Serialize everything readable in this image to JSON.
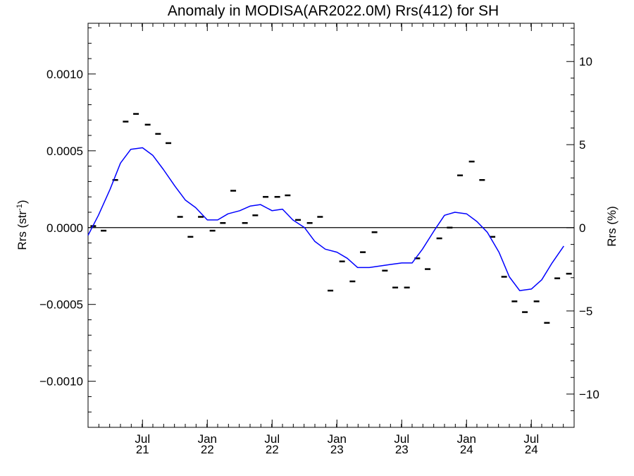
{
  "chart_data": {
    "type": "line",
    "title": "Anomaly in MODISA(AR2022.0M) Rrs(412) for SH",
    "ylabel_left": "Rrs (str",
    "ylabel_left_sup": "-1",
    "ylabel_left_close": ")",
    "ylabel_right": "Rrs (%)",
    "xlabel": "",
    "x_unit": "year (decimal)",
    "xlim": [
      2021.0,
      2024.75
    ],
    "ylim_left": [
      -0.0013,
      0.00133
    ],
    "ylim_right": [
      -12.0,
      12.3
    ],
    "y_ticks_left": [
      {
        "value": 0.001,
        "label": "0.0010"
      },
      {
        "value": 0.0005,
        "label": "0.0005"
      },
      {
        "value": 0.0,
        "label": "0.0000"
      },
      {
        "value": -0.0005,
        "label": "−0.0005"
      },
      {
        "value": -0.001,
        "label": "−0.0010"
      }
    ],
    "y_ticks_right": [
      {
        "value": 10,
        "label": "10"
      },
      {
        "value": 5,
        "label": "5"
      },
      {
        "value": 0,
        "label": "0"
      },
      {
        "value": -5,
        "label": "−5"
      },
      {
        "value": -10,
        "label": "−10"
      }
    ],
    "x_ticks": [
      {
        "value": 2021.42,
        "month": "Jul",
        "year": "21"
      },
      {
        "value": 2021.92,
        "month": "Jan",
        "year": "22"
      },
      {
        "value": 2022.42,
        "month": "Jul",
        "year": "22"
      },
      {
        "value": 2022.92,
        "month": "Jan",
        "year": "23"
      },
      {
        "value": 2023.42,
        "month": "Jul",
        "year": "23"
      },
      {
        "value": 2023.92,
        "month": "Jan",
        "year": "24"
      },
      {
        "value": 2024.42,
        "month": "Jul",
        "year": "24"
      }
    ],
    "zero_line": true,
    "grid": false,
    "series": [
      {
        "style": "markers",
        "color": "#000000",
        "points": [
          [
            2021.04,
            1e-05
          ],
          [
            2021.12,
            -2e-05
          ],
          [
            2021.21,
            0.00031
          ],
          [
            2021.29,
            0.00069
          ],
          [
            2021.37,
            0.00074
          ],
          [
            2021.46,
            0.00067
          ],
          [
            2021.54,
            0.00061
          ],
          [
            2021.62,
            0.00055
          ],
          [
            2021.71,
            7e-05
          ],
          [
            2021.79,
            -6e-05
          ],
          [
            2021.87,
            7e-05
          ],
          [
            2021.96,
            -2e-05
          ],
          [
            2022.04,
            3e-05
          ],
          [
            2022.12,
            0.00024
          ],
          [
            2022.21,
            3e-05
          ],
          [
            2022.29,
            8e-05
          ],
          [
            2022.37,
            0.0002
          ],
          [
            2022.46,
            0.0002
          ],
          [
            2022.54,
            0.00021
          ],
          [
            2022.62,
            5e-05
          ],
          [
            2022.71,
            3e-05
          ],
          [
            2022.79,
            7e-05
          ],
          [
            2022.87,
            -0.00041
          ],
          [
            2022.96,
            -0.00022
          ],
          [
            2023.04,
            -0.00035
          ],
          [
            2023.12,
            -0.00016
          ],
          [
            2023.21,
            -3e-05
          ],
          [
            2023.29,
            -0.00028
          ],
          [
            2023.37,
            -0.00039
          ],
          [
            2023.46,
            -0.00039
          ],
          [
            2023.54,
            -0.0002
          ],
          [
            2023.62,
            -0.00027
          ],
          [
            2023.71,
            -7e-05
          ],
          [
            2023.79,
            0.0
          ],
          [
            2023.87,
            0.00034
          ],
          [
            2023.96,
            0.00043
          ],
          [
            2024.04,
            0.00031
          ],
          [
            2024.12,
            -6e-05
          ],
          [
            2024.21,
            -0.00032
          ],
          [
            2024.29,
            -0.00048
          ],
          [
            2024.37,
            -0.00055
          ],
          [
            2024.46,
            -0.00048
          ],
          [
            2024.54,
            -0.00062
          ],
          [
            2024.62,
            -0.00033
          ],
          [
            2024.71,
            -0.0003
          ]
        ]
      },
      {
        "style": "line",
        "color": "#0000ff",
        "points": [
          [
            2021.0,
            -5e-05
          ],
          [
            2021.08,
            8e-05
          ],
          [
            2021.17,
            0.00025
          ],
          [
            2021.25,
            0.00042
          ],
          [
            2021.33,
            0.00051
          ],
          [
            2021.42,
            0.00052
          ],
          [
            2021.5,
            0.00047
          ],
          [
            2021.58,
            0.00038
          ],
          [
            2021.67,
            0.00027
          ],
          [
            2021.75,
            0.00018
          ],
          [
            2021.83,
            0.00013
          ],
          [
            2021.92,
            5e-05
          ],
          [
            2022.0,
            5e-05
          ],
          [
            2022.08,
            9e-05
          ],
          [
            2022.17,
            0.00011
          ],
          [
            2022.25,
            0.00014
          ],
          [
            2022.33,
            0.00015
          ],
          [
            2022.42,
            0.00011
          ],
          [
            2022.5,
            0.00012
          ],
          [
            2022.58,
            5e-05
          ],
          [
            2022.67,
            0.0
          ],
          [
            2022.75,
            -9e-05
          ],
          [
            2022.83,
            -0.00014
          ],
          [
            2022.92,
            -0.00016
          ],
          [
            2023.0,
            -0.0002
          ],
          [
            2023.08,
            -0.00026
          ],
          [
            2023.17,
            -0.00026
          ],
          [
            2023.25,
            -0.00025
          ],
          [
            2023.33,
            -0.00024
          ],
          [
            2023.42,
            -0.00023
          ],
          [
            2023.5,
            -0.00023
          ],
          [
            2023.58,
            -0.00014
          ],
          [
            2023.67,
            -2e-05
          ],
          [
            2023.75,
            8e-05
          ],
          [
            2023.83,
            0.0001
          ],
          [
            2023.92,
            9e-05
          ],
          [
            2024.0,
            4e-05
          ],
          [
            2024.08,
            -3e-05
          ],
          [
            2024.17,
            -0.00016
          ],
          [
            2024.25,
            -0.00032
          ],
          [
            2024.33,
            -0.00041
          ],
          [
            2024.42,
            -0.0004
          ],
          [
            2024.5,
            -0.00034
          ],
          [
            2024.58,
            -0.00023
          ],
          [
            2024.67,
            -0.00012
          ]
        ]
      }
    ]
  }
}
